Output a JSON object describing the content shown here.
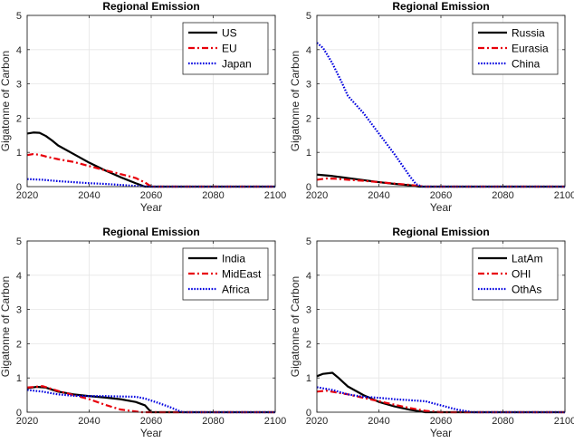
{
  "colors": {
    "black": "#000000",
    "red": "#e8000b",
    "blue": "#0000e0",
    "axis": "#262626",
    "grid": "#e6e6e6"
  },
  "chart_data": [
    {
      "type": "line",
      "title": "Regional Emission",
      "xlabel": "Year",
      "ylabel": "Gigatonne of Carbon",
      "xlim": [
        2020,
        2100
      ],
      "ylim": [
        0,
        5
      ],
      "xticks": [
        "2020",
        "2040",
        "2060",
        "2080",
        "2100"
      ],
      "yticks": [
        "0",
        "1",
        "2",
        "3",
        "4",
        "5"
      ],
      "grid": true,
      "legend": "top-right",
      "series": [
        {
          "name": "US",
          "style": "solid",
          "color": "#000000",
          "x": [
            2020,
            2022,
            2024,
            2026,
            2028,
            2030,
            2035,
            2040,
            2045,
            2050,
            2055,
            2058,
            2100
          ],
          "y": [
            1.55,
            1.58,
            1.57,
            1.48,
            1.35,
            1.2,
            0.95,
            0.7,
            0.48,
            0.28,
            0.1,
            0.0,
            0.0
          ]
        },
        {
          "name": "EU",
          "style": "dashdot",
          "color": "#e8000b",
          "x": [
            2020,
            2022,
            2024,
            2026,
            2030,
            2035,
            2040,
            2045,
            2050,
            2055,
            2058,
            2060,
            2100
          ],
          "y": [
            0.92,
            0.95,
            0.93,
            0.88,
            0.8,
            0.72,
            0.6,
            0.48,
            0.37,
            0.25,
            0.12,
            0.0,
            0.0
          ]
        },
        {
          "name": "Japan",
          "style": "dotted",
          "color": "#0000e0",
          "x": [
            2020,
            2025,
            2030,
            2035,
            2040,
            2045,
            2050,
            2055,
            2060,
            2100
          ],
          "y": [
            0.22,
            0.2,
            0.16,
            0.13,
            0.1,
            0.08,
            0.05,
            0.02,
            0.0,
            0.0
          ]
        }
      ]
    },
    {
      "type": "line",
      "title": "Regional Emission",
      "xlabel": "Year",
      "ylabel": "Gigatonne of Carbon",
      "xlim": [
        2020,
        2100
      ],
      "ylim": [
        0,
        5
      ],
      "xticks": [
        "2020",
        "2040",
        "2060",
        "2080",
        "2100"
      ],
      "yticks": [
        "0",
        "1",
        "2",
        "3",
        "4",
        "5"
      ],
      "grid": true,
      "legend": "top-right",
      "series": [
        {
          "name": "Russia",
          "style": "solid",
          "color": "#000000",
          "x": [
            2020,
            2025,
            2030,
            2035,
            2040,
            2045,
            2050,
            2053,
            2100
          ],
          "y": [
            0.35,
            0.31,
            0.25,
            0.19,
            0.13,
            0.08,
            0.04,
            0.0,
            0.0
          ]
        },
        {
          "name": "Eurasia",
          "style": "dashdot",
          "color": "#e8000b",
          "x": [
            2020,
            2023,
            2026,
            2030,
            2035,
            2040,
            2045,
            2050,
            2055,
            2100
          ],
          "y": [
            0.2,
            0.24,
            0.23,
            0.2,
            0.17,
            0.13,
            0.09,
            0.05,
            0.0,
            0.0
          ]
        },
        {
          "name": "China",
          "style": "dotted",
          "color": "#0000e0",
          "x": [
            2020,
            2022,
            2025,
            2028,
            2030,
            2035,
            2040,
            2045,
            2050,
            2052,
            2054,
            2100
          ],
          "y": [
            4.2,
            4.05,
            3.6,
            3.05,
            2.65,
            2.15,
            1.55,
            0.95,
            0.3,
            0.07,
            0.0,
            0.0
          ]
        }
      ]
    },
    {
      "type": "line",
      "title": "Regional Emission",
      "xlabel": "Year",
      "ylabel": "Gigatonne of Carbon",
      "xlim": [
        2020,
        2100
      ],
      "ylim": [
        0,
        5
      ],
      "xticks": [
        "2020",
        "2040",
        "2060",
        "2080",
        "2100"
      ],
      "yticks": [
        "0",
        "1",
        "2",
        "3",
        "4",
        "5"
      ],
      "grid": true,
      "legend": "top-right",
      "series": [
        {
          "name": "India",
          "style": "solid",
          "color": "#000000",
          "x": [
            2020,
            2023,
            2026,
            2030,
            2035,
            2040,
            2045,
            2050,
            2055,
            2058,
            2060,
            2100
          ],
          "y": [
            0.7,
            0.74,
            0.72,
            0.6,
            0.52,
            0.47,
            0.43,
            0.38,
            0.3,
            0.2,
            0.0,
            0.0
          ]
        },
        {
          "name": "MidEast",
          "style": "dashdot",
          "color": "#e8000b",
          "x": [
            2020,
            2025,
            2030,
            2035,
            2040,
            2045,
            2050,
            2055,
            2057,
            2100
          ],
          "y": [
            0.72,
            0.76,
            0.62,
            0.5,
            0.38,
            0.22,
            0.08,
            0.02,
            0.0,
            0.0
          ]
        },
        {
          "name": "Africa",
          "style": "dotted",
          "color": "#0000e0",
          "x": [
            2020,
            2025,
            2030,
            2035,
            2040,
            2045,
            2050,
            2055,
            2058,
            2062,
            2066,
            2070,
            2100
          ],
          "y": [
            0.65,
            0.6,
            0.52,
            0.48,
            0.47,
            0.47,
            0.46,
            0.45,
            0.4,
            0.28,
            0.15,
            0.0,
            0.0
          ]
        }
      ]
    },
    {
      "type": "line",
      "title": "Regional Emission",
      "xlabel": "Year",
      "ylabel": "Gigatonne of Carbon",
      "xlim": [
        2020,
        2100
      ],
      "ylim": [
        0,
        5
      ],
      "xticks": [
        "2020",
        "2040",
        "2060",
        "2080",
        "2100"
      ],
      "yticks": [
        "0",
        "1",
        "2",
        "3",
        "4",
        "5"
      ],
      "grid": true,
      "legend": "top-right",
      "series": [
        {
          "name": "LatAm",
          "style": "solid",
          "color": "#000000",
          "x": [
            2020,
            2022,
            2025,
            2027,
            2030,
            2035,
            2040,
            2045,
            2050,
            2055,
            2100
          ],
          "y": [
            1.05,
            1.12,
            1.15,
            1.0,
            0.75,
            0.5,
            0.3,
            0.17,
            0.07,
            0.0,
            0.0
          ]
        },
        {
          "name": "OHI",
          "style": "dashdot",
          "color": "#e8000b",
          "x": [
            2020,
            2023,
            2026,
            2030,
            2035,
            2040,
            2045,
            2050,
            2055,
            2060,
            2100
          ],
          "y": [
            0.6,
            0.63,
            0.58,
            0.52,
            0.42,
            0.32,
            0.22,
            0.12,
            0.04,
            0.0,
            0.0
          ]
        },
        {
          "name": "OthAs",
          "style": "dotted",
          "color": "#0000e0",
          "x": [
            2020,
            2025,
            2030,
            2035,
            2040,
            2045,
            2050,
            2055,
            2060,
            2065,
            2070,
            2100
          ],
          "y": [
            0.73,
            0.65,
            0.52,
            0.45,
            0.42,
            0.38,
            0.35,
            0.32,
            0.2,
            0.08,
            0.0,
            0.0
          ]
        }
      ]
    }
  ]
}
